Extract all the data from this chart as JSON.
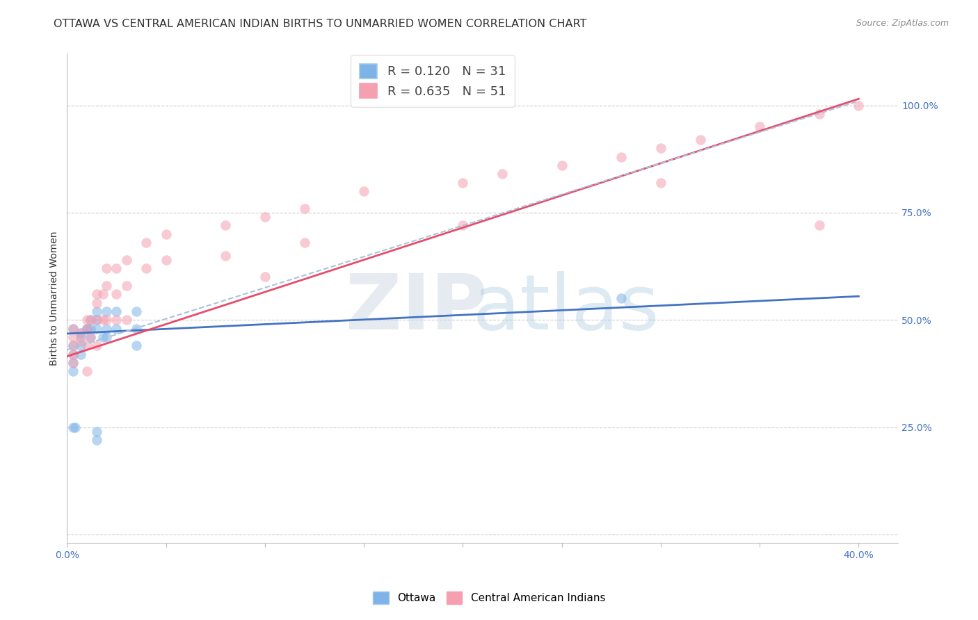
{
  "title": "OTTAWA VS CENTRAL AMERICAN INDIAN BIRTHS TO UNMARRIED WOMEN CORRELATION CHART",
  "source": "Source: ZipAtlas.com",
  "ylabel": "Births to Unmarried Women",
  "xlim": [
    0.0,
    0.42
  ],
  "ylim": [
    -0.02,
    1.12
  ],
  "y_ticks_right": [
    0.0,
    0.25,
    0.5,
    0.75,
    1.0
  ],
  "y_tick_labels_right": [
    "",
    "25.0%",
    "50.0%",
    "75.0%",
    "100.0%"
  ],
  "legend_R_ottawa": "0.120",
  "legend_N_ottawa": "31",
  "legend_R_cai": "0.635",
  "legend_N_cai": "51",
  "ottawa_color": "#7EB3E8",
  "cai_color": "#F4A0B0",
  "ottawa_line_color": "#4472C4",
  "cai_line_color": "#E84C6A",
  "ref_line_color": "#A8C4DC",
  "background_color": "#FFFFFF",
  "grid_color": "#CCCCCC",
  "ottawa_x": [
    0.01,
    0.01,
    0.003,
    0.003,
    0.003,
    0.003,
    0.003,
    0.007,
    0.007,
    0.007,
    0.007,
    0.012,
    0.012,
    0.012,
    0.015,
    0.015,
    0.015,
    0.018,
    0.02,
    0.02,
    0.02,
    0.025,
    0.025,
    0.035,
    0.035,
    0.035,
    0.003,
    0.004,
    0.015,
    0.015,
    0.28
  ],
  "ottawa_y": [
    0.48,
    0.48,
    0.48,
    0.44,
    0.42,
    0.4,
    0.38,
    0.47,
    0.46,
    0.44,
    0.42,
    0.5,
    0.48,
    0.46,
    0.52,
    0.5,
    0.48,
    0.46,
    0.52,
    0.48,
    0.46,
    0.52,
    0.48,
    0.52,
    0.48,
    0.44,
    0.25,
    0.25,
    0.24,
    0.22,
    0.55
  ],
  "cai_x": [
    0.003,
    0.003,
    0.003,
    0.003,
    0.003,
    0.007,
    0.007,
    0.01,
    0.01,
    0.01,
    0.01,
    0.012,
    0.012,
    0.015,
    0.015,
    0.015,
    0.015,
    0.018,
    0.018,
    0.02,
    0.02,
    0.02,
    0.025,
    0.025,
    0.025,
    0.03,
    0.03,
    0.03,
    0.04,
    0.04,
    0.05,
    0.05,
    0.08,
    0.08,
    0.1,
    0.1,
    0.12,
    0.12,
    0.15,
    0.2,
    0.2,
    0.22,
    0.25,
    0.28,
    0.3,
    0.3,
    0.32,
    0.35,
    0.38,
    0.4,
    0.38
  ],
  "cai_y": [
    0.48,
    0.46,
    0.44,
    0.42,
    0.4,
    0.47,
    0.45,
    0.5,
    0.48,
    0.44,
    0.38,
    0.5,
    0.46,
    0.56,
    0.54,
    0.5,
    0.44,
    0.56,
    0.5,
    0.62,
    0.58,
    0.5,
    0.62,
    0.56,
    0.5,
    0.64,
    0.58,
    0.5,
    0.68,
    0.62,
    0.7,
    0.64,
    0.72,
    0.65,
    0.74,
    0.6,
    0.76,
    0.68,
    0.8,
    0.82,
    0.72,
    0.84,
    0.86,
    0.88,
    0.9,
    0.82,
    0.92,
    0.95,
    0.98,
    1.0,
    0.72
  ],
  "ottawa_line_x": [
    0.0,
    0.4
  ],
  "ottawa_line_y": [
    0.468,
    0.555
  ],
  "cai_line_x": [
    0.0,
    0.4
  ],
  "cai_line_y": [
    0.415,
    1.015
  ],
  "ref_line_x": [
    0.0,
    0.4
  ],
  "ref_line_y": [
    0.43,
    1.01
  ],
  "title_fontsize": 11.5,
  "source_fontsize": 9,
  "axis_label_fontsize": 10,
  "tick_fontsize": 10,
  "dot_size": 110,
  "dot_alpha": 0.55,
  "line_width": 2.0
}
